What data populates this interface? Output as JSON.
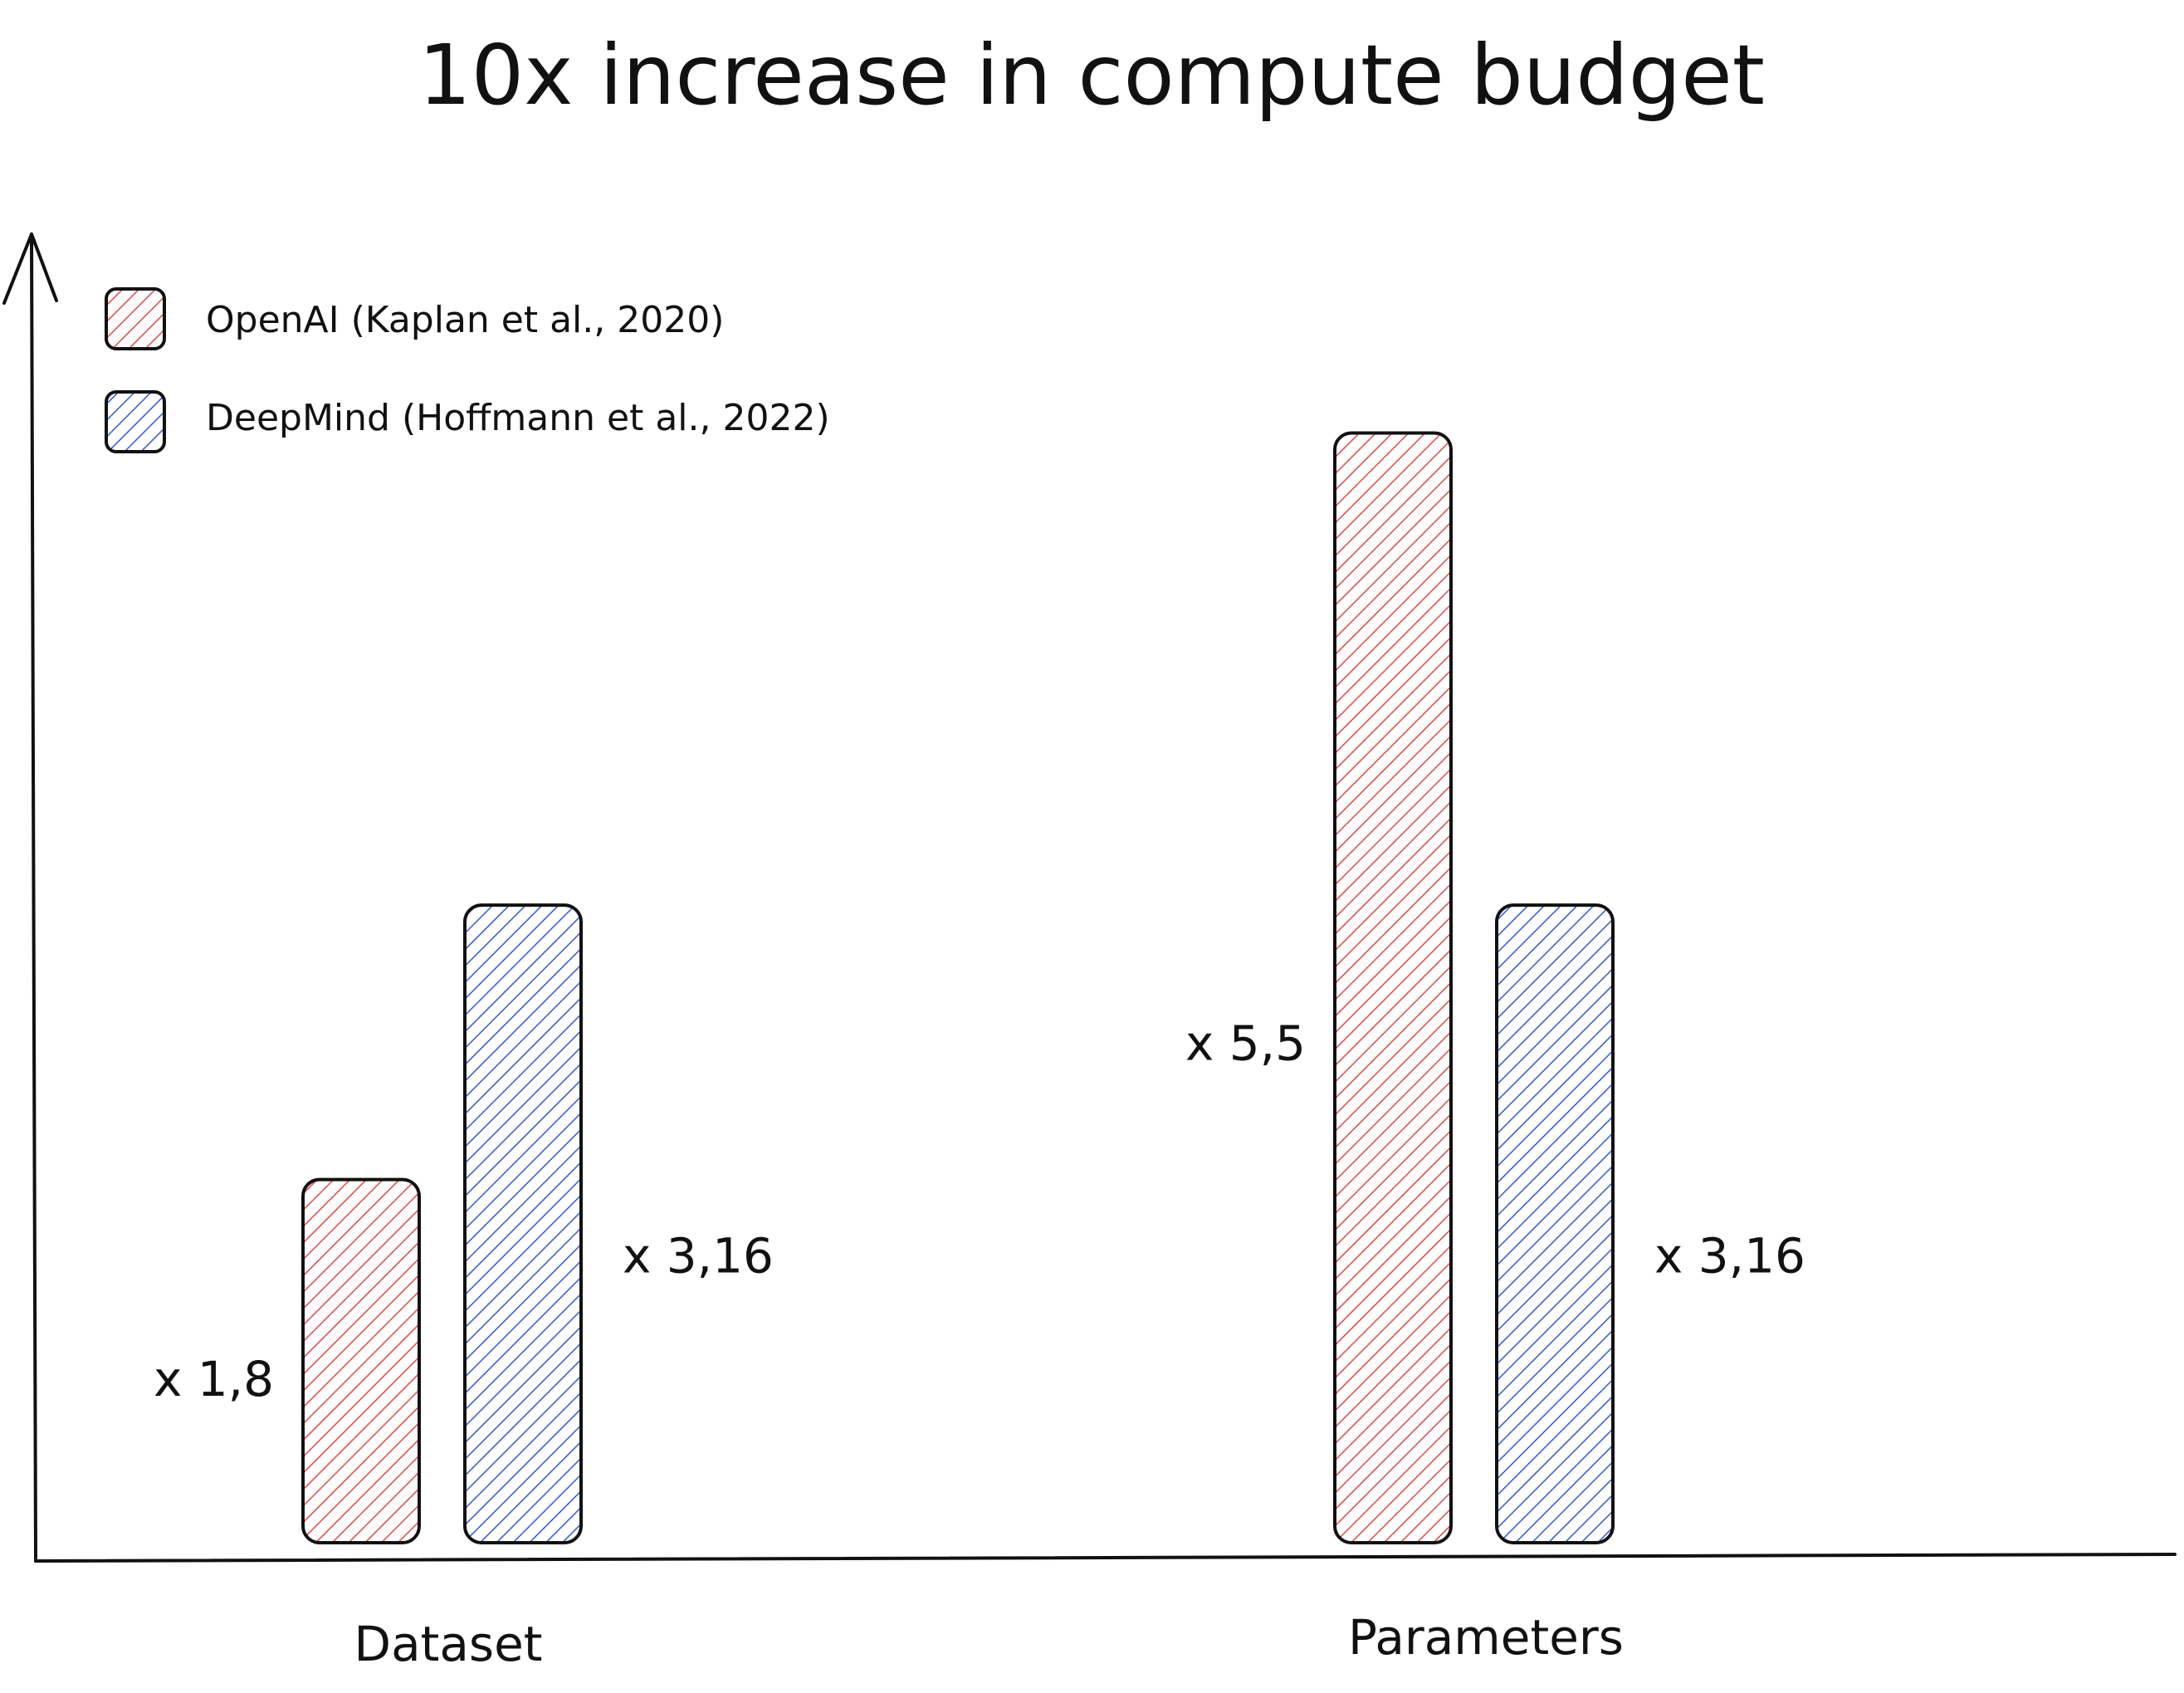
{
  "chart_data": {
    "type": "bar",
    "title": "10x increase in compute budget",
    "categories": [
      "Dataset",
      "Parameters"
    ],
    "series": [
      {
        "name": "OpenAI (Kaplan et al., 2020)",
        "color": "#e0474c",
        "values": [
          1.8,
          5.5
        ],
        "labels": [
          "x 1,8",
          "x 5,5"
        ]
      },
      {
        "name": "DeepMind (Hoffmann et al., 2022)",
        "color": "#3a55d6",
        "values": [
          3.16,
          3.16
        ],
        "labels": [
          "x 3,16",
          "x 3,16"
        ]
      }
    ],
    "ylim": [
      0,
      6.3
    ],
    "grid": false,
    "legend": "top-left",
    "xlabel": "",
    "ylabel": ""
  }
}
